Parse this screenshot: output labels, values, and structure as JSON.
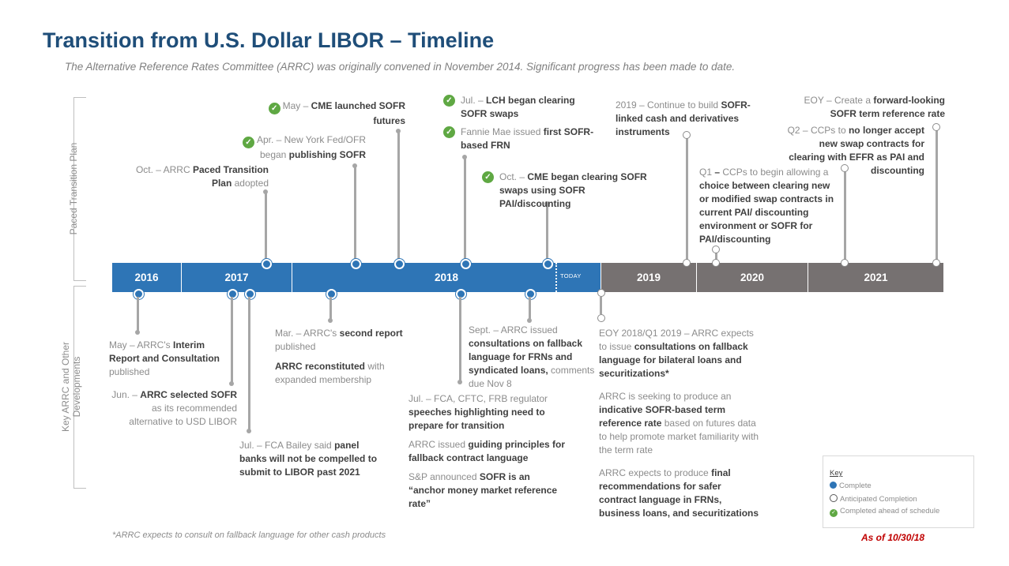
{
  "title": "Transition from U.S. Dollar LIBOR – Timeline",
  "subtitle": "The Alternative Reference Rates Committee (ARRC) was originally convened in November 2014. Significant progress has been made to date.",
  "side_labels": {
    "top": "Paced Transition Plan",
    "bottom_line1": "Key ARRC and Other",
    "bottom_line2": "Developments"
  },
  "years": [
    "2016",
    "2017",
    "2018",
    "2019",
    "2020",
    "2021"
  ],
  "today_label": "TODAY",
  "colors": {
    "complete": "#2e75b6",
    "future": "#767171",
    "ahead": "#5fa843",
    "title": "#1f4e79",
    "asof": "#c00000"
  },
  "check_icon": "✓",
  "top_events": {
    "oct2017": {
      "pre": "Oct. – ARRC ",
      "b1": "Paced Transition Plan",
      "post": " adopted"
    },
    "apr2018": {
      "pre": "Apr. – New York Fed/OFR began ",
      "b1": "publishing SOFR"
    },
    "may2018": {
      "pre": "May – ",
      "b1": "CME launched SOFR futures"
    },
    "jul2018": {
      "pre": "Jul. – ",
      "b1": "LCH began clearing SOFR swaps",
      "pre2": "Fannie Mae issued ",
      "b2": "first SOFR-based FRN"
    },
    "oct2018": {
      "pre": "Oct. – ",
      "b1": "CME began clearing SOFR swaps using SOFR PAI/discounting"
    },
    "y2019": {
      "pre": "2019 – Continue to build ",
      "b1": "SOFR-linked cash and derivatives instruments"
    },
    "q1_2020": {
      "pre": "Q1 ",
      "b0": "–",
      "mid": " CCPs to begin allowing a ",
      "b1": "choice between clearing new or modified swap contracts in current PAI/ discounting environment or SOFR for PAI/discounting"
    },
    "q2_2020": {
      "pre": "Q2 – CCPs to ",
      "b1": "no longer accept new swap contracts for clearing with EFFR as PAI and discounting"
    },
    "eoy2021": {
      "pre": "EOY – Create a ",
      "b1": "forward-looking SOFR term reference rate"
    }
  },
  "bottom_events": {
    "may2016": {
      "pre": "May – ARRC's ",
      "b1": "Interim Report and Consultation",
      "post": " published"
    },
    "jun2017": {
      "pre": "Jun. – ",
      "b1": "ARRC selected SOFR",
      "post": " as its recommended alternative to USD LIBOR"
    },
    "jul2017": {
      "pre": "Jul. – FCA Bailey said ",
      "b1": "panel banks will not be compelled to submit to LIBOR past 2021"
    },
    "mar2018": {
      "pre": "Mar. – ARRC's ",
      "b1": "second report",
      "post": " published",
      "b2": "ARRC reconstituted",
      "post2": " with expanded membership"
    },
    "jul2018": {
      "pre": "Jul. – FCA, CFTC, FRB regulator ",
      "b1": "speeches highlighting need to prepare for transition",
      "pre2": "ARRC issued ",
      "b2": "guiding principles for fallback contract language",
      "pre3": "S&P announced ",
      "b3": "SOFR is an “anchor money market reference rate”"
    },
    "sep2018": {
      "pre": "Sept. – ARRC issued ",
      "b1": "consultations on fallback language for FRNs and syndicated loans,",
      "post": " comments due Nov 8"
    },
    "eoy2018": {
      "pre": "EOY 2018/Q1 2019 – ARRC expects to issue ",
      "b1": "consultations on fallback language for bilateral loans and securitizations*",
      "pre2": "ARRC is seeking to produce an ",
      "b2": "indicative SOFR-based term reference rate",
      "post2": " based on futures data to help promote market familiarity with the term rate",
      "pre3": "ARRC expects to produce ",
      "b3": "final recommendations for safer contract language in FRNs, business loans, and securitizations"
    }
  },
  "footnote": "*ARRC expects to consult on fallback language for other cash products",
  "as_of": "As of 10/30/18",
  "key": {
    "title": "Key",
    "complete": "Complete",
    "anticipated": "Anticipated Completion",
    "ahead": "Completed ahead of schedule"
  }
}
